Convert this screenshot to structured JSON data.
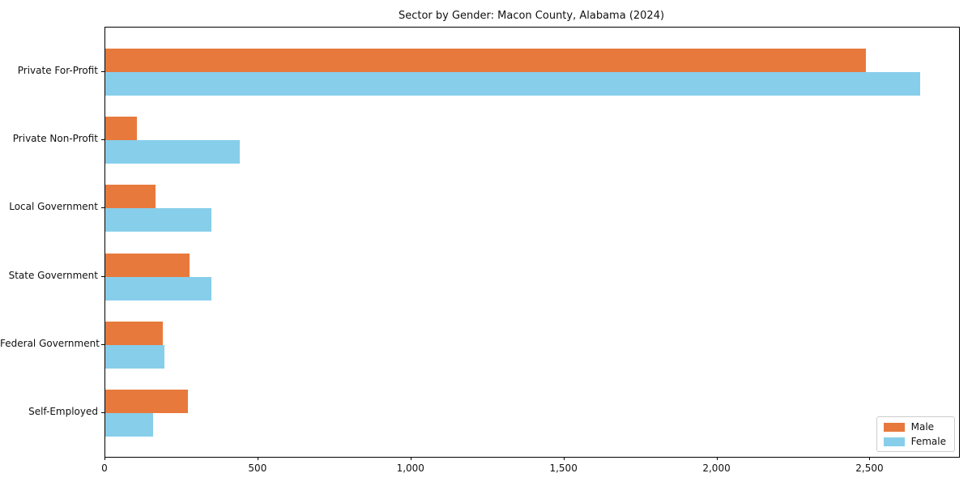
{
  "chart_data": {
    "type": "bar",
    "orientation": "horizontal",
    "title": "Sector by Gender: Macon County, Alabama (2024)",
    "categories": [
      "Private For-Profit",
      "Private Non-Profit",
      "Local Government",
      "State Government",
      "Federal Government",
      "Self-Employed"
    ],
    "series": [
      {
        "name": "Male",
        "color": "#E8793C",
        "values": [
          2485,
          103,
          163,
          275,
          188,
          269
        ]
      },
      {
        "name": "Female",
        "color": "#87CEEB",
        "values": [
          2664,
          438,
          346,
          347,
          194,
          156
        ]
      }
    ],
    "x_ticks": [
      0,
      500,
      1000,
      1500,
      2000,
      2500
    ],
    "x_tick_labels": [
      "0",
      "500",
      "1,000",
      "1,500",
      "2,000",
      "2,500"
    ],
    "xlim": [
      0,
      2790
    ],
    "xlabel": "",
    "ylabel": "",
    "grid": false,
    "legend_position": "lower right",
    "axis_color": "#000000",
    "legend_border_color": "#cccccc"
  }
}
